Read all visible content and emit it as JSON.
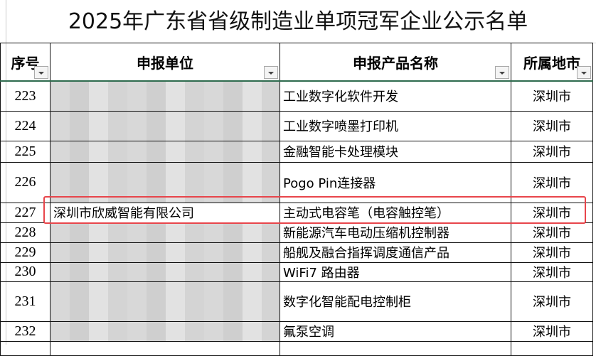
{
  "title": "2025年广东省省级制造业单项冠军企业公示名单",
  "headers": [
    "序号",
    "申报单位",
    "申报产品名称",
    "所属地市"
  ],
  "rows": [
    {
      "no": "223",
      "unit": "",
      "product": "工业数字化软件开发",
      "city": "深圳市"
    },
    {
      "no": "224",
      "unit": "",
      "product": "工业数字喷墨打印机",
      "city": "深圳市"
    },
    {
      "no": "225",
      "unit": "",
      "product": "金融智能卡处理模块",
      "city": "深圳市"
    },
    {
      "no": "226",
      "unit": "",
      "product": "Pogo Pin连接器",
      "city": "深圳市"
    },
    {
      "no": "227",
      "unit": "深圳市欣威智能有限公司",
      "product": "主动式电容笔（电容触控笔）",
      "city": "深圳市"
    },
    {
      "no": "228",
      "unit": "",
      "product": "新能源汽车电动压缩机控制器",
      "city": "深圳市"
    },
    {
      "no": "229",
      "unit": "",
      "product": "船舰及融合指挥调度通信产品",
      "city": "深圳市"
    },
    {
      "no": "230",
      "unit": "",
      "product": "WiFi7 路由器",
      "city": "深圳市"
    },
    {
      "no": "231",
      "unit": "",
      "product": "数字化智能配电控制柜",
      "city": "深圳市"
    },
    {
      "no": "232",
      "unit": "",
      "product": "氟泵空调",
      "city": "深圳市"
    }
  ],
  "highlight_color": "#e8454b"
}
